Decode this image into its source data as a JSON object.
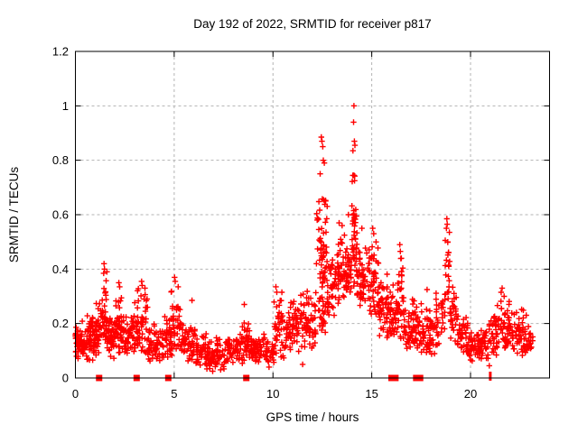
{
  "window_title": "Day 192 of 2022, SRMTID for receiver p817",
  "chart_data": {
    "type": "scatter",
    "title": "Day 192 of 2022, SRMTID for receiver p817",
    "xlabel": "GPS time / hours",
    "ylabel": "SRMTID / TECUs",
    "xlim": [
      0,
      24
    ],
    "ylim": [
      0,
      1.2
    ],
    "xticks": [
      0,
      5,
      10,
      15,
      20
    ],
    "yticks": [
      0,
      0.2,
      0.4,
      0.6,
      0.8,
      1,
      1.2
    ],
    "grid": true,
    "legend": false,
    "marker": {
      "shape": "plus",
      "color": "#ff0000",
      "size": 7
    },
    "grid_color": "#b3b3b3",
    "border_color": "#000000",
    "seed": 42,
    "point_bands": [
      [
        0.0,
        0.5,
        55,
        0.06,
        0.22
      ],
      [
        0.5,
        1.0,
        55,
        0.06,
        0.24
      ],
      [
        1.0,
        1.35,
        40,
        0.08,
        0.3
      ],
      [
        1.35,
        1.6,
        30,
        0.1,
        0.4
      ],
      [
        1.6,
        2.05,
        50,
        0.07,
        0.26
      ],
      [
        2.05,
        2.4,
        40,
        0.08,
        0.32
      ],
      [
        2.4,
        3.0,
        55,
        0.07,
        0.26
      ],
      [
        3.0,
        3.65,
        55,
        0.07,
        0.34
      ],
      [
        3.65,
        4.45,
        60,
        0.06,
        0.21
      ],
      [
        4.45,
        4.85,
        35,
        0.06,
        0.28
      ],
      [
        4.85,
        5.3,
        40,
        0.07,
        0.36
      ],
      [
        5.3,
        6.05,
        55,
        0.05,
        0.25
      ],
      [
        6.05,
        6.65,
        45,
        0.04,
        0.18
      ],
      [
        6.65,
        7.65,
        70,
        0.03,
        0.15
      ],
      [
        7.65,
        8.45,
        55,
        0.05,
        0.17
      ],
      [
        8.45,
        8.85,
        30,
        0.06,
        0.26
      ],
      [
        8.85,
        9.65,
        55,
        0.05,
        0.17
      ],
      [
        9.65,
        10.05,
        30,
        0.05,
        0.16
      ],
      [
        10.05,
        10.65,
        45,
        0.07,
        0.32
      ],
      [
        10.65,
        11.35,
        55,
        0.08,
        0.3
      ],
      [
        11.35,
        12.2,
        65,
        0.1,
        0.36
      ],
      [
        12.2,
        12.75,
        55,
        0.3,
        0.78
      ],
      [
        12.2,
        12.75,
        25,
        0.15,
        0.35
      ],
      [
        12.75,
        13.15,
        35,
        0.22,
        0.46
      ],
      [
        13.15,
        13.65,
        45,
        0.26,
        0.55
      ],
      [
        13.65,
        13.98,
        35,
        0.28,
        0.5
      ],
      [
        13.98,
        14.25,
        40,
        0.32,
        0.78
      ],
      [
        14.25,
        14.85,
        50,
        0.26,
        0.5
      ],
      [
        14.85,
        15.35,
        50,
        0.2,
        0.54
      ],
      [
        15.35,
        15.85,
        45,
        0.14,
        0.4
      ],
      [
        15.85,
        16.3,
        35,
        0.12,
        0.35
      ],
      [
        16.3,
        16.6,
        30,
        0.14,
        0.49
      ],
      [
        16.6,
        17.25,
        55,
        0.1,
        0.3
      ],
      [
        17.25,
        18.25,
        75,
        0.08,
        0.28
      ],
      [
        18.25,
        18.7,
        30,
        0.1,
        0.32
      ],
      [
        18.7,
        18.95,
        18,
        0.28,
        0.56
      ],
      [
        18.95,
        19.35,
        30,
        0.12,
        0.38
      ],
      [
        19.35,
        19.9,
        40,
        0.08,
        0.24
      ],
      [
        19.9,
        20.9,
        70,
        0.06,
        0.2
      ],
      [
        20.9,
        21.35,
        35,
        0.08,
        0.26
      ],
      [
        21.35,
        22.05,
        55,
        0.1,
        0.33
      ],
      [
        22.05,
        22.75,
        50,
        0.08,
        0.28
      ],
      [
        22.75,
        23.15,
        25,
        0.08,
        0.24
      ]
    ],
    "outlier_points": [
      [
        1.45,
        0.42
      ],
      [
        1.47,
        0.4
      ],
      [
        1.43,
        0.385
      ],
      [
        2.2,
        0.35
      ],
      [
        2.24,
        0.335
      ],
      [
        3.35,
        0.355
      ],
      [
        3.38,
        0.34
      ],
      [
        3.52,
        0.33
      ],
      [
        5.02,
        0.37
      ],
      [
        5.05,
        0.355
      ],
      [
        5.2,
        0.335
      ],
      [
        5.9,
        0.285
      ],
      [
        8.55,
        0.27
      ],
      [
        10.15,
        0.335
      ],
      [
        10.45,
        0.315
      ],
      [
        12.2,
        0.42
      ],
      [
        12.45,
        0.885
      ],
      [
        12.48,
        0.87
      ],
      [
        12.52,
        0.85
      ],
      [
        12.55,
        0.8
      ],
      [
        12.6,
        0.79
      ],
      [
        13.35,
        0.57
      ],
      [
        13.5,
        0.56
      ],
      [
        13.82,
        0.6
      ],
      [
        14.1,
        1.0
      ],
      [
        14.08,
        0.94
      ],
      [
        14.12,
        0.87
      ],
      [
        14.15,
        0.855
      ],
      [
        14.05,
        0.835
      ],
      [
        14.1,
        0.745
      ],
      [
        14.13,
        0.725
      ],
      [
        14.09,
        0.615
      ],
      [
        14.11,
        0.59
      ],
      [
        14.5,
        0.55
      ],
      [
        15.05,
        0.55
      ],
      [
        15.1,
        0.53
      ],
      [
        15.22,
        0.5
      ],
      [
        16.42,
        0.49
      ],
      [
        16.45,
        0.465
      ],
      [
        16.5,
        0.44
      ],
      [
        17.8,
        0.325
      ],
      [
        18.8,
        0.585
      ],
      [
        18.82,
        0.565
      ],
      [
        18.78,
        0.55
      ],
      [
        18.85,
        0.5
      ],
      [
        18.88,
        0.46
      ],
      [
        18.9,
        0.41
      ],
      [
        21.6,
        0.33
      ],
      [
        21.55,
        0.315
      ],
      [
        21.7,
        0.3
      ],
      [
        6.95,
        0.025
      ],
      [
        7.35,
        0.03
      ],
      [
        9.8,
        0.04
      ],
      [
        11.5,
        0.05
      ],
      [
        20.95,
        0.045
      ]
    ],
    "baseline_squares": [
      1.2,
      3.1,
      4.7,
      8.65,
      16.0,
      16.2,
      17.25,
      17.45
    ],
    "baseline_thin_tick": 21.0
  }
}
